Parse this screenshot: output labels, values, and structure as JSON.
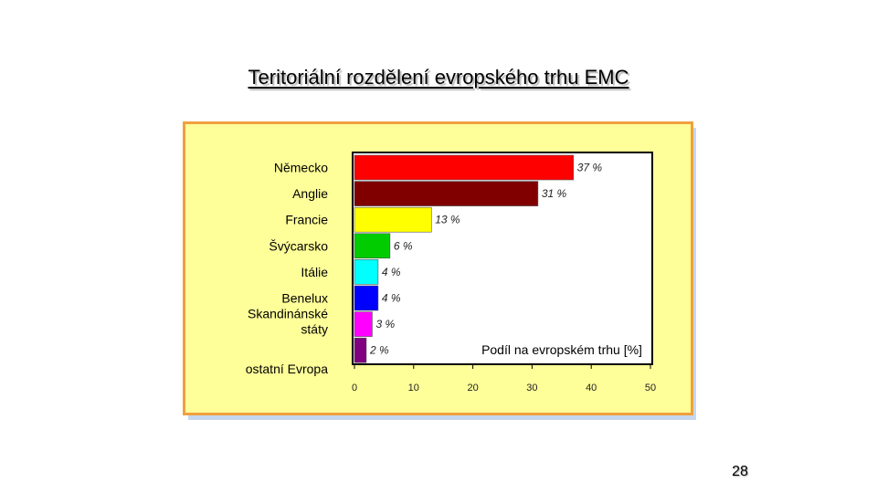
{
  "slide": {
    "title": "Teritoriální rozdělení evropského trhu EMC",
    "page_number": "28"
  },
  "chart_data": {
    "type": "bar",
    "orientation": "horizontal",
    "title": "",
    "categories": [
      "Německo",
      "Anglie",
      "Francie",
      "Švýcarsko",
      "Itálie",
      "Benelux",
      "Skandinánské státy",
      "ostatní Evropa"
    ],
    "values": [
      37,
      31,
      13,
      6,
      4,
      4,
      3,
      2
    ],
    "value_labels": [
      "37 %",
      "31 %",
      "13 %",
      "6 %",
      "4 %",
      "4 %",
      "3 %",
      "2 %"
    ],
    "colors": [
      "#ff0000",
      "#800000",
      "#ffff00",
      "#00cc00",
      "#00ffff",
      "#0000ff",
      "#ff00ff",
      "#800080"
    ],
    "xlabel": "Podíl na evropském trhu [%]",
    "xlim": [
      0,
      50
    ],
    "xticks": [
      0,
      10,
      20,
      30,
      40,
      50
    ],
    "grid": false,
    "legend": "none",
    "plot_background": "#ffffff",
    "frame_background": "#ffff99",
    "frame_border": "#f0a040"
  }
}
